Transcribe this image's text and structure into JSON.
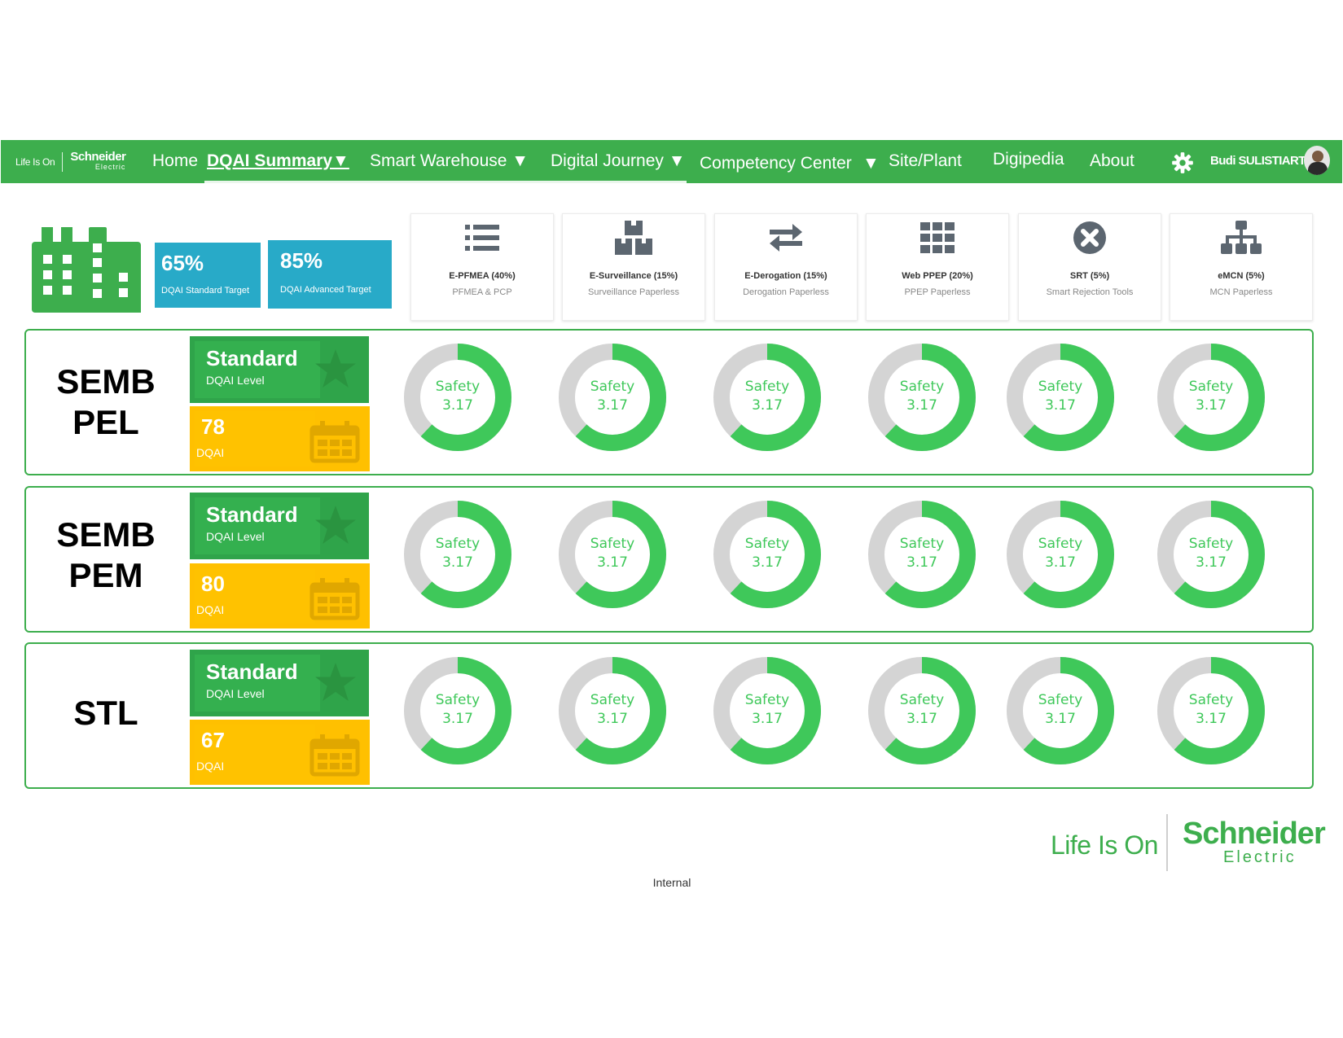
{
  "nav": {
    "brand_tagline": "Life Is On",
    "brand_name": "Schneider",
    "brand_sub": "Electric",
    "items": [
      {
        "label": "Home"
      },
      {
        "label": "DQAI Summary▼"
      },
      {
        "label": "Smart Warehouse ▼"
      },
      {
        "label": "Digital Journey ▼"
      },
      {
        "label": "Competency Center"
      },
      {
        "label": "▼"
      },
      {
        "label": "Site/Plant"
      },
      {
        "label": "Digipedia"
      },
      {
        "label": "About"
      }
    ],
    "settings_icon": "gear-icon",
    "user_name": "Budi SULISTIARTO"
  },
  "targets": [
    {
      "value": "65%",
      "label": "DQAI Standard Target"
    },
    {
      "value": "85%",
      "label": "DQAI Advanced Target"
    }
  ],
  "modules": [
    {
      "title": "E-PFMEA (40%)",
      "subtitle": "PFMEA & PCP",
      "icon": "list-icon"
    },
    {
      "title": "E-Surveillance (15%)",
      "subtitle": "Surveillance Paperless",
      "icon": "boxes-icon"
    },
    {
      "title": "E-Derogation (15%)",
      "subtitle": "Derogation Paperless",
      "icon": "exchange-icon"
    },
    {
      "title": "Web PPEP (20%)",
      "subtitle": "PPEP Paperless",
      "icon": "grid-icon"
    },
    {
      "title": "SRT (5%)",
      "subtitle": "Smart Rejection Tools",
      "icon": "close-circle-icon"
    },
    {
      "title": "eMCN (5%)",
      "subtitle": "MCN Paperless",
      "icon": "sitemap-icon"
    }
  ],
  "sites": [
    {
      "name_line1": "SEMB",
      "name_line2": "PEL",
      "level": "Standard",
      "level_sub": "DQAI Level",
      "score": "78",
      "score_sub": "DQAI",
      "donuts": [
        {
          "label": "Safety",
          "value": "3.17",
          "fill": 0.62
        },
        {
          "label": "Safety",
          "value": "3.17",
          "fill": 0.62
        },
        {
          "label": "Safety",
          "value": "3.17",
          "fill": 0.62
        },
        {
          "label": "Safety",
          "value": "3.17",
          "fill": 0.62
        },
        {
          "label": "Safety",
          "value": "3.17",
          "fill": 0.62
        },
        {
          "label": "Safety",
          "value": "3.17",
          "fill": 0.62
        }
      ]
    },
    {
      "name_line1": "SEMB",
      "name_line2": "PEM",
      "level": "Standard",
      "level_sub": "DQAI Level",
      "score": "80",
      "score_sub": "DQAI",
      "donuts": [
        {
          "label": "Safety",
          "value": "3.17",
          "fill": 0.62
        },
        {
          "label": "Safety",
          "value": "3.17",
          "fill": 0.62
        },
        {
          "label": "Safety",
          "value": "3.17",
          "fill": 0.62
        },
        {
          "label": "Safety",
          "value": "3.17",
          "fill": 0.62
        },
        {
          "label": "Safety",
          "value": "3.17",
          "fill": 0.62
        },
        {
          "label": "Safety",
          "value": "3.17",
          "fill": 0.62
        }
      ]
    },
    {
      "name_line1": "STL",
      "name_line2": "",
      "level": "Standard",
      "level_sub": "DQAI Level",
      "score": "67",
      "score_sub": "DQAI",
      "donuts": [
        {
          "label": "Safety",
          "value": "3.17",
          "fill": 0.62
        },
        {
          "label": "Safety",
          "value": "3.17",
          "fill": 0.62
        },
        {
          "label": "Safety",
          "value": "3.17",
          "fill": 0.62
        },
        {
          "label": "Safety",
          "value": "3.17",
          "fill": 0.62
        },
        {
          "label": "Safety",
          "value": "3.17",
          "fill": 0.62
        },
        {
          "label": "Safety",
          "value": "3.17",
          "fill": 0.62
        }
      ]
    }
  ],
  "footer": {
    "tagline": "Life Is On",
    "brand_name": "Schneider",
    "brand_sub": "Electric",
    "classification": "Internal"
  },
  "colors": {
    "brand_green": "#3dae4d",
    "target_blue": "#28aac8",
    "score_yellow": "#ffc000",
    "donut_green": "#3fc85a",
    "donut_track": "#d4d4d4"
  }
}
